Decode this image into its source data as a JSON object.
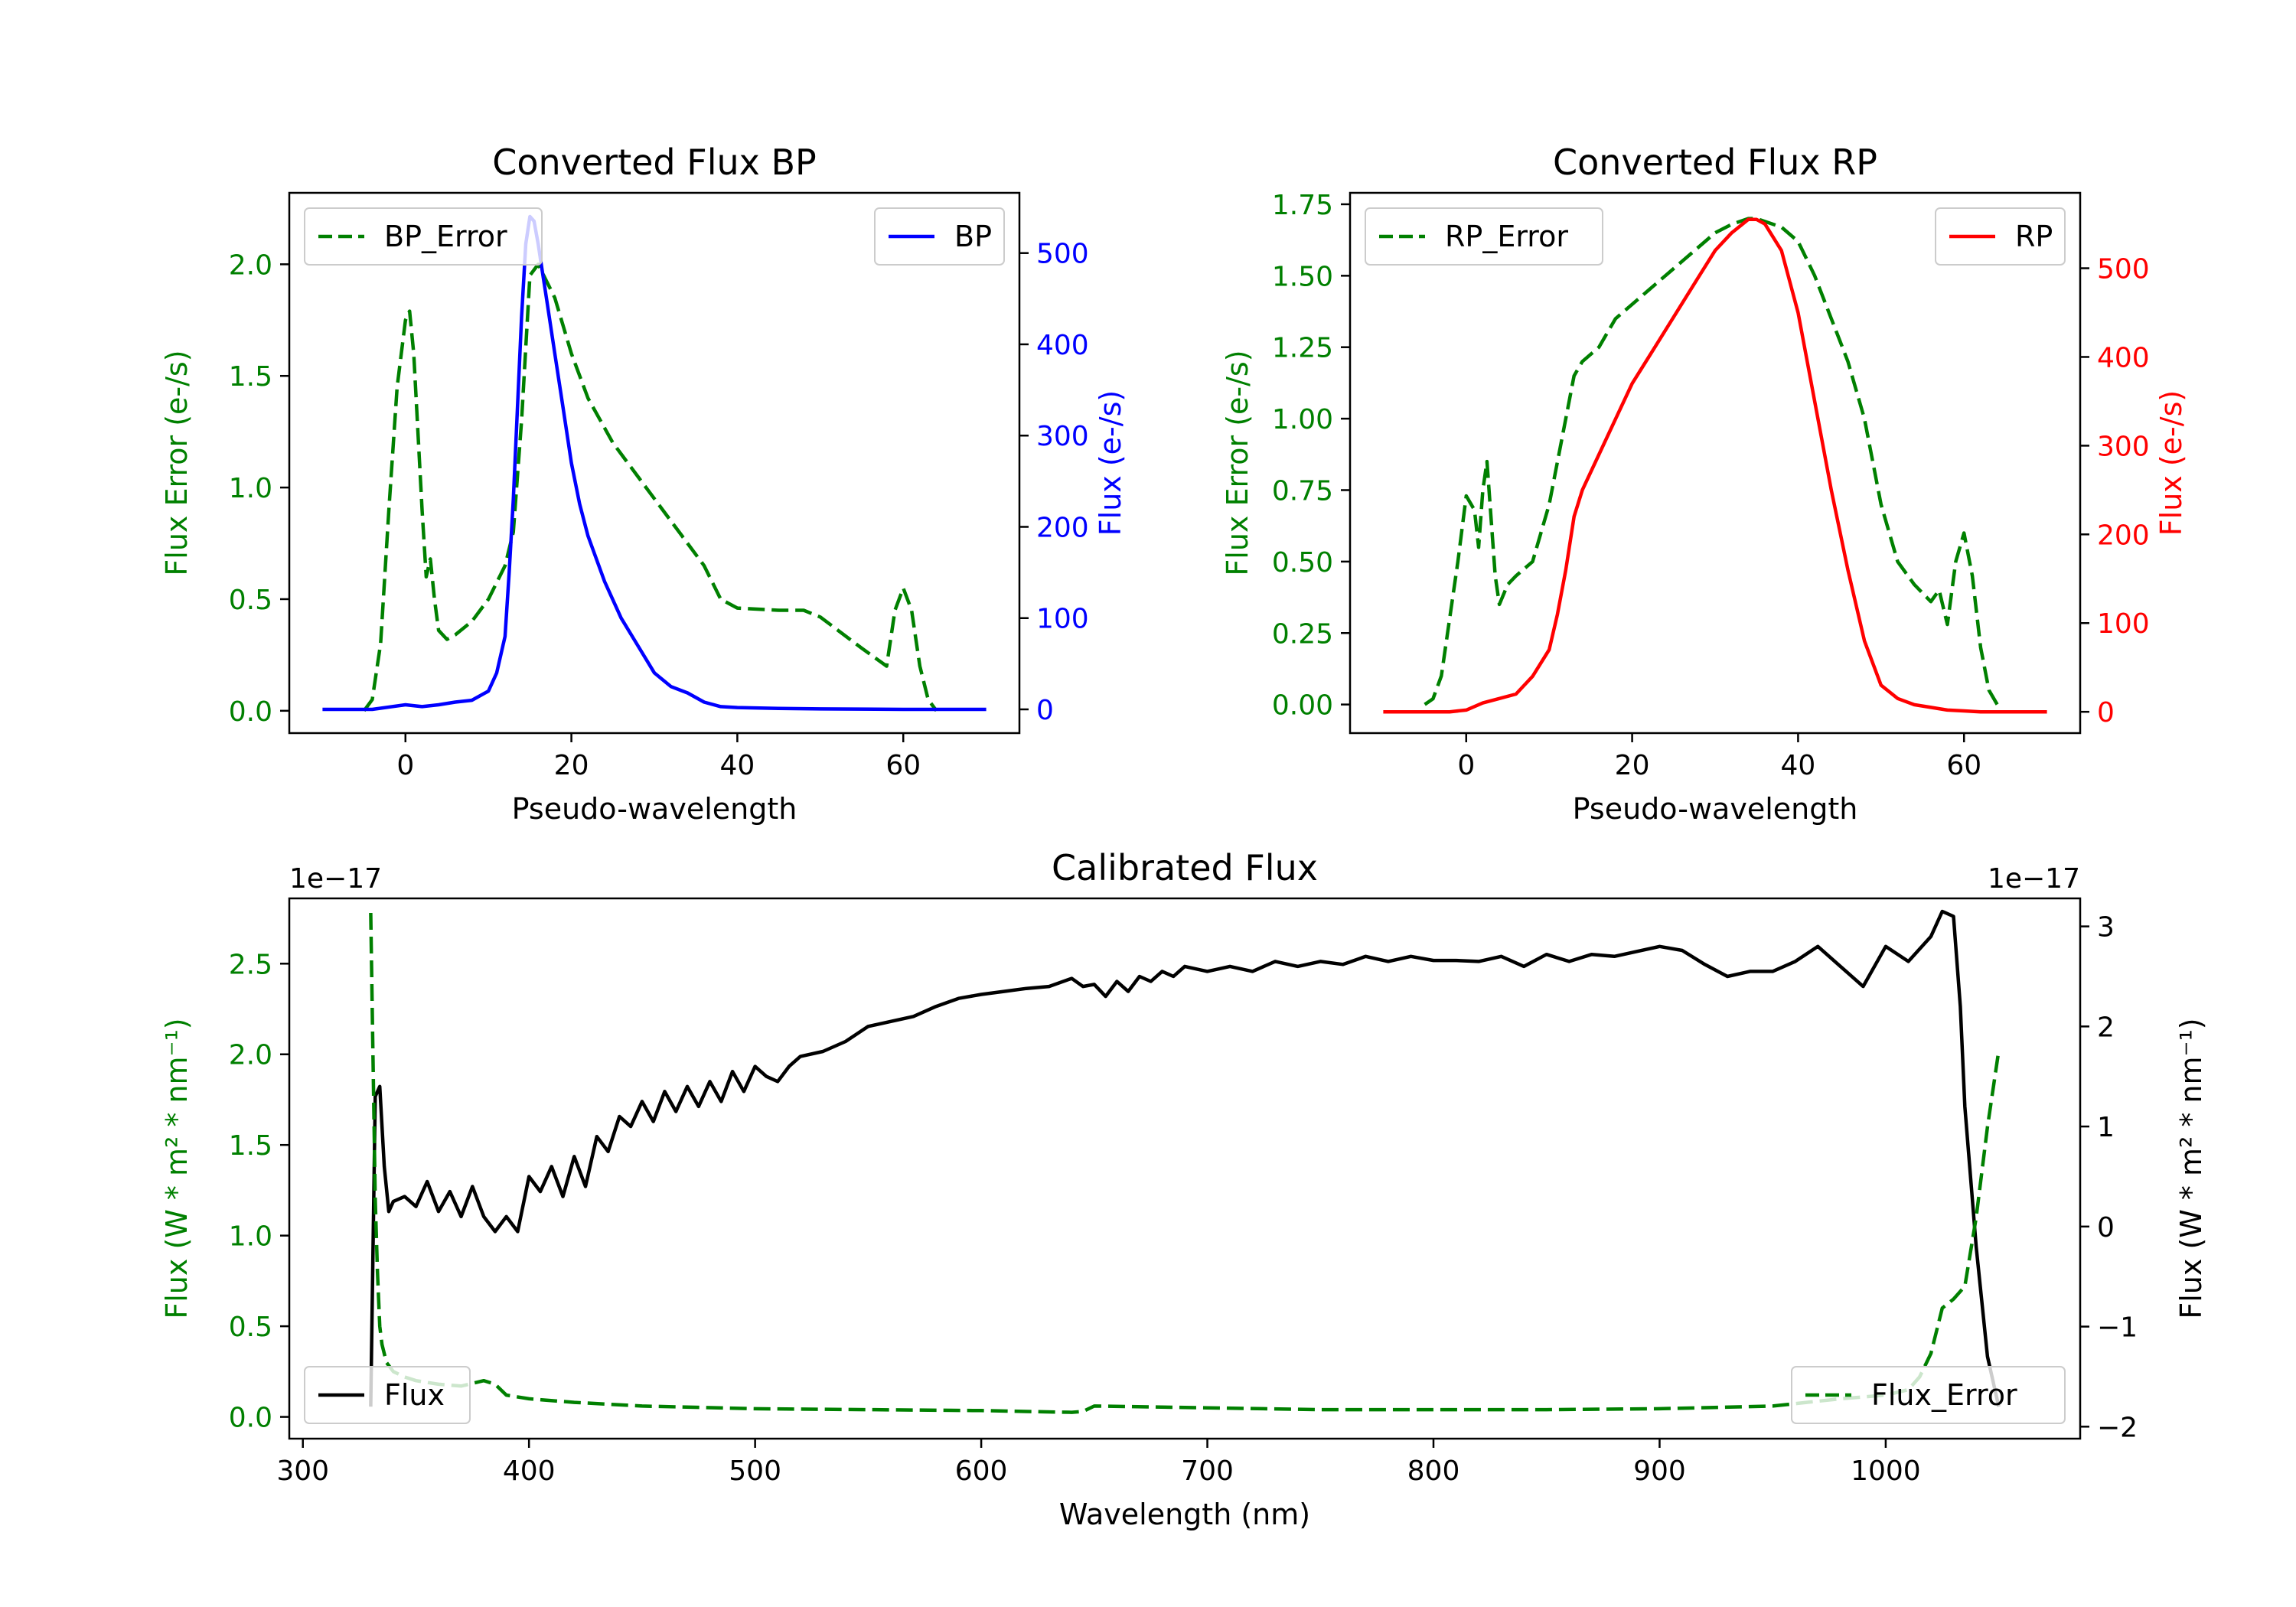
{
  "chart_data": [
    {
      "type": "line",
      "title": "Converted Flux BP",
      "xlabel": "Pseudo-wavelength",
      "ylabel_left": "Flux Error (e-/s)",
      "ylabel_right": "Flux (e-/s)",
      "xlim": [
        -14,
        74
      ],
      "ylim_left": [
        -0.1,
        2.32
      ],
      "ylim_right": [
        -26,
        566
      ],
      "xticks": [
        "0",
        "20",
        "40",
        "60"
      ],
      "yticks_left": [
        "0.0",
        "0.5",
        "1.0",
        "1.5",
        "2.0"
      ],
      "yticks_right": [
        "0",
        "100",
        "200",
        "300",
        "400",
        "500"
      ],
      "series": [
        {
          "name": "BP_Error",
          "axis": "left",
          "color": "#008000",
          "dash": "dashed",
          "x": [
            -5,
            -4,
            -3,
            -2,
            -1,
            0,
            0.5,
            1,
            2,
            2.5,
            3,
            3.5,
            4,
            5,
            6,
            8,
            10,
            12,
            13,
            14,
            15,
            16,
            18,
            20,
            22,
            25,
            28,
            30,
            33,
            36,
            38,
            40,
            45,
            48,
            50,
            55,
            58,
            59,
            60,
            61,
            62,
            63,
            64
          ],
          "y": [
            0,
            0.05,
            0.3,
            0.9,
            1.45,
            1.75,
            1.79,
            1.6,
            0.9,
            0.6,
            0.68,
            0.5,
            0.36,
            0.32,
            0.34,
            0.4,
            0.5,
            0.65,
            0.8,
            1.3,
            1.95,
            2.0,
            1.85,
            1.6,
            1.4,
            1.2,
            1.05,
            0.95,
            0.8,
            0.65,
            0.5,
            0.46,
            0.45,
            0.45,
            0.42,
            0.28,
            0.2,
            0.45,
            0.55,
            0.45,
            0.2,
            0.05,
            0
          ]
        },
        {
          "name": "BP",
          "axis": "right",
          "color": "#0000ff",
          "dash": "solid",
          "x": [
            -10,
            -4,
            0,
            2,
            4,
            6,
            8,
            10,
            11,
            12,
            12.5,
            13,
            13.5,
            14,
            14.5,
            15,
            15.5,
            16,
            16.5,
            17,
            18,
            19,
            20,
            21,
            22,
            24,
            26,
            28,
            30,
            32,
            34,
            36,
            38,
            40,
            45,
            50,
            60,
            70
          ],
          "y": [
            0,
            0,
            5,
            3,
            5,
            8,
            10,
            20,
            40,
            80,
            150,
            230,
            330,
            430,
            510,
            540,
            535,
            510,
            480,
            450,
            390,
            330,
            270,
            225,
            190,
            140,
            100,
            70,
            40,
            25,
            18,
            8,
            3,
            2,
            1,
            0.5,
            0,
            0
          ]
        }
      ],
      "legend": [
        {
          "label": "BP_Error",
          "placement": "top-left"
        },
        {
          "label": "BP",
          "placement": "top-right"
        }
      ]
    },
    {
      "type": "line",
      "title": "Converted Flux RP",
      "xlabel": "Pseudo-wavelength",
      "ylabel_left": "Flux Error (e-/s)",
      "ylabel_right": "Flux (e-/s)",
      "xlim": [
        -14,
        74
      ],
      "ylim_left": [
        -0.1,
        1.79
      ],
      "ylim_right": [
        -24,
        585
      ],
      "xticks": [
        "0",
        "20",
        "40",
        "60"
      ],
      "yticks_left": [
        "0.00",
        "0.25",
        "0.50",
        "0.75",
        "1.00",
        "1.25",
        "1.50",
        "1.75"
      ],
      "yticks_right": [
        "0",
        "100",
        "200",
        "300",
        "400",
        "500"
      ],
      "series": [
        {
          "name": "RP_Error",
          "axis": "left",
          "color": "#008000",
          "dash": "dashed",
          "x": [
            -5,
            -4,
            -3,
            -2,
            -1,
            0,
            1,
            1.5,
            2,
            2.5,
            3,
            3.5,
            4,
            5,
            6,
            8,
            10,
            12,
            13,
            14,
            16,
            18,
            20,
            22,
            24,
            26,
            28,
            30,
            32,
            34,
            35,
            36,
            38,
            40,
            42,
            44,
            46,
            48,
            50,
            52,
            54,
            56,
            57,
            58,
            59,
            60,
            61,
            62,
            63,
            64
          ],
          "y": [
            0,
            0.02,
            0.1,
            0.3,
            0.5,
            0.73,
            0.68,
            0.55,
            0.75,
            0.85,
            0.65,
            0.45,
            0.35,
            0.42,
            0.45,
            0.5,
            0.7,
            1.0,
            1.15,
            1.2,
            1.25,
            1.35,
            1.4,
            1.45,
            1.5,
            1.55,
            1.6,
            1.65,
            1.68,
            1.7,
            1.7,
            1.69,
            1.67,
            1.62,
            1.5,
            1.35,
            1.2,
            1.0,
            0.7,
            0.5,
            0.42,
            0.36,
            0.4,
            0.28,
            0.5,
            0.6,
            0.45,
            0.2,
            0.05,
            0
          ]
        },
        {
          "name": "RP",
          "axis": "right",
          "color": "#ff0000",
          "dash": "solid",
          "x": [
            -10,
            -4,
            -2,
            0,
            2,
            4,
            6,
            8,
            10,
            11,
            12,
            13,
            14,
            16,
            18,
            20,
            22,
            24,
            26,
            28,
            30,
            32,
            34,
            35,
            36,
            38,
            40,
            42,
            44,
            46,
            48,
            50,
            52,
            54,
            56,
            58,
            60,
            62,
            70
          ],
          "y": [
            0,
            0,
            0,
            2,
            10,
            15,
            20,
            40,
            70,
            110,
            160,
            220,
            250,
            290,
            330,
            370,
            400,
            430,
            460,
            490,
            520,
            540,
            555,
            555,
            550,
            520,
            450,
            350,
            250,
            160,
            80,
            30,
            15,
            8,
            5,
            2,
            1,
            0,
            0
          ]
        }
      ],
      "legend": [
        {
          "label": "RP_Error",
          "placement": "top-left"
        },
        {
          "label": "RP",
          "placement": "top-right"
        }
      ]
    },
    {
      "type": "line",
      "title": "Calibrated Flux",
      "xlabel": "Wavelength (nm)",
      "ylabel_left": "Flux (W * m² * nm⁻¹)",
      "ylabel_right": "Flux (W * m² * nm⁻¹)",
      "offset_left": "1e−17",
      "offset_right": "1e−17",
      "xlim": [
        294,
        1086
      ],
      "ylim_left": [
        -0.12,
        2.86
      ],
      "ylim_right": [
        -2.12,
        3.28
      ],
      "xticks": [
        "300",
        "400",
        "500",
        "600",
        "700",
        "800",
        "900",
        "1000"
      ],
      "yticks_left": [
        "0.0",
        "0.5",
        "1.0",
        "1.5",
        "2.0",
        "2.5"
      ],
      "yticks_right": [
        "−2",
        "−1",
        "0",
        "1",
        "2",
        "3"
      ],
      "series": [
        {
          "name": "Flux",
          "axis": "right",
          "color": "#000000",
          "dash": "solid",
          "x": [
            330,
            332,
            334,
            336,
            338,
            340,
            345,
            350,
            355,
            360,
            365,
            370,
            375,
            380,
            385,
            390,
            395,
            400,
            405,
            410,
            415,
            420,
            425,
            430,
            435,
            440,
            445,
            450,
            455,
            460,
            465,
            470,
            475,
            480,
            485,
            490,
            495,
            500,
            505,
            510,
            515,
            520,
            530,
            540,
            550,
            560,
            570,
            580,
            590,
            600,
            610,
            620,
            630,
            640,
            645,
            650,
            655,
            660,
            665,
            670,
            675,
            680,
            685,
            690,
            700,
            710,
            720,
            730,
            740,
            750,
            760,
            770,
            780,
            790,
            800,
            810,
            820,
            830,
            840,
            850,
            860,
            870,
            880,
            890,
            900,
            910,
            920,
            930,
            940,
            950,
            960,
            970,
            980,
            990,
            1000,
            1010,
            1020,
            1025,
            1030,
            1033,
            1035,
            1040,
            1045,
            1050
          ],
          "y": [
            -1.8,
            1.3,
            1.4,
            0.6,
            0.15,
            0.25,
            0.3,
            0.2,
            0.45,
            0.15,
            0.35,
            0.1,
            0.4,
            0.1,
            -0.05,
            0.1,
            -0.05,
            0.5,
            0.35,
            0.6,
            0.3,
            0.7,
            0.4,
            0.9,
            0.75,
            1.1,
            1.0,
            1.25,
            1.05,
            1.35,
            1.15,
            1.4,
            1.2,
            1.45,
            1.25,
            1.55,
            1.35,
            1.6,
            1.5,
            1.45,
            1.6,
            1.7,
            1.75,
            1.85,
            2.0,
            2.05,
            2.1,
            2.2,
            2.28,
            2.32,
            2.35,
            2.38,
            2.4,
            2.48,
            2.4,
            2.42,
            2.3,
            2.45,
            2.35,
            2.5,
            2.45,
            2.55,
            2.5,
            2.6,
            2.55,
            2.6,
            2.55,
            2.65,
            2.6,
            2.65,
            2.62,
            2.7,
            2.65,
            2.7,
            2.66,
            2.66,
            2.65,
            2.7,
            2.6,
            2.72,
            2.65,
            2.72,
            2.7,
            2.75,
            2.8,
            2.76,
            2.62,
            2.5,
            2.55,
            2.55,
            2.65,
            2.8,
            2.6,
            2.4,
            2.8,
            2.65,
            2.9,
            3.15,
            3.1,
            2.2,
            1.2,
            -0.2,
            -1.3,
            -1.8
          ]
        },
        {
          "name": "Flux_Error",
          "axis": "left",
          "color": "#008000",
          "dash": "dashed",
          "x": [
            330,
            331,
            332,
            333,
            334,
            335,
            337,
            340,
            345,
            350,
            360,
            370,
            380,
            385,
            390,
            400,
            420,
            450,
            500,
            550,
            600,
            620,
            640,
            645,
            650,
            700,
            750,
            800,
            850,
            900,
            950,
            980,
            1000,
            1010,
            1015,
            1020,
            1025,
            1030,
            1035,
            1040,
            1045,
            1050
          ],
          "y": [
            2.78,
            2.0,
            1.2,
            0.8,
            0.5,
            0.4,
            0.3,
            0.25,
            0.22,
            0.2,
            0.18,
            0.17,
            0.2,
            0.18,
            0.12,
            0.1,
            0.08,
            0.06,
            0.045,
            0.04,
            0.035,
            0.03,
            0.025,
            0.03,
            0.06,
            0.05,
            0.04,
            0.04,
            0.04,
            0.045,
            0.06,
            0.1,
            0.12,
            0.15,
            0.22,
            0.35,
            0.6,
            0.65,
            0.72,
            1.1,
            1.6,
            2.02
          ]
        }
      ],
      "legend": [
        {
          "label": "Flux",
          "placement": "bottom-left"
        },
        {
          "label": "Flux_Error",
          "placement": "bottom-right"
        }
      ]
    }
  ]
}
